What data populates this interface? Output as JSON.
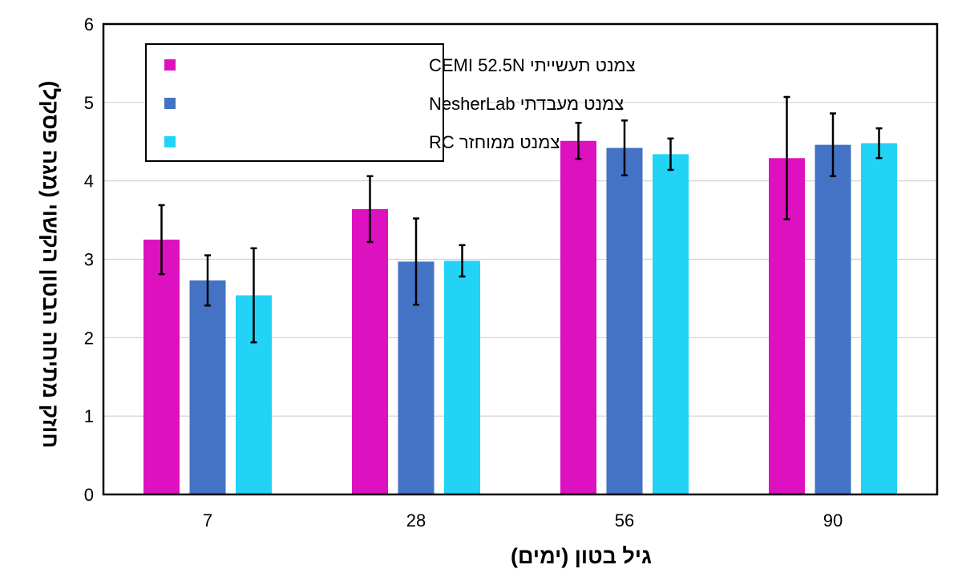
{
  "chart_data": {
    "type": "bar",
    "categories": [
      "7",
      "28",
      "56",
      "90"
    ],
    "series": [
      {
        "name": "צמנט תעשייתי CEMI 52.5N",
        "color": "#DE11C0",
        "values": [
          3.25,
          3.64,
          4.51,
          4.29
        ],
        "errors": [
          0.44,
          0.42,
          0.23,
          0.78
        ]
      },
      {
        "name": "צמנט מעבדתי NesherLab",
        "color": "#4472C4",
        "values": [
          2.73,
          2.97,
          4.42,
          4.46
        ],
        "errors": [
          0.32,
          0.55,
          0.35,
          0.4
        ]
      },
      {
        "name": "צמנט ממוחזר RC",
        "color": "#22D3F5",
        "values": [
          2.54,
          2.98,
          4.34,
          4.48
        ],
        "errors": [
          0.6,
          0.2,
          0.2,
          0.19
        ]
      }
    ],
    "xlabel": "גיל בטון (ימים)",
    "ylabel": "חוזק מתיחה הבטון הקשוי (מגה פסקל)",
    "ylim": [
      0,
      6
    ],
    "yticks": [
      "0",
      "1",
      "2",
      "3",
      "4",
      "5",
      "6"
    ],
    "grid": true,
    "legend_position": "top-left"
  }
}
